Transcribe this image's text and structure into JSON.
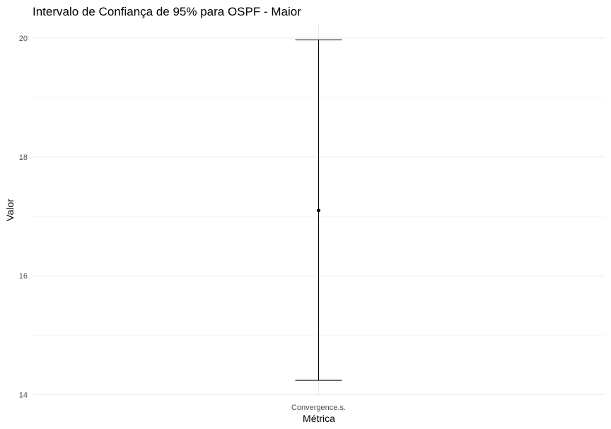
{
  "chart_data": {
    "type": "errorbar",
    "title": "Intervalo de Confiança de 95% para OSPF - Maior",
    "xlabel": "Métrica",
    "ylabel": "Valor",
    "categories": [
      "Convergence.s."
    ],
    "points": [
      {
        "category": "Convergence.s.",
        "estimate": 17.1,
        "lower": 14.24,
        "upper": 19.97
      }
    ],
    "ylim": [
      13.98,
      20.26
    ],
    "yticks": [
      14,
      16,
      18,
      20
    ],
    "yticks_minor": [
      15,
      17,
      19
    ],
    "grid": true,
    "legend": "none",
    "colors": {
      "line": "#000000",
      "grid_major": "#ebebeb",
      "grid_minor": "#f2f2f2",
      "tick_text": "#4d4d4d"
    }
  }
}
